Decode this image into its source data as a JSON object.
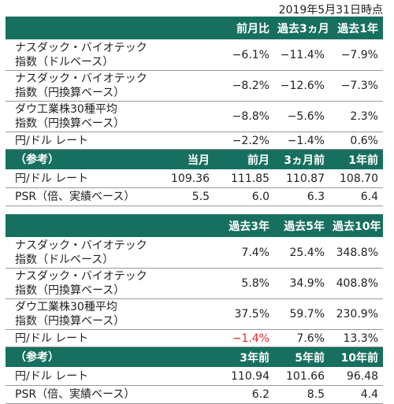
{
  "date": "2019年5月31日時点",
  "table1": {
    "headers": [
      "",
      "前月比",
      "過去3ヵ月",
      "過去1年"
    ],
    "rows": [
      {
        "label1": "ナスダック・バイオテック",
        "label2": "指数（ドルベース）",
        "values": [
          "−6.1%",
          "−11.4%",
          "−7.9%"
        ]
      },
      {
        "label1": "ナスダック・バイオテック",
        "label2": "指数（円換算ベース）",
        "values": [
          "−8.2%",
          "−12.6%",
          "−7.3%"
        ]
      },
      {
        "label1": "ダウ工業株30種平均",
        "label2": "指数（円換算ベース）",
        "values": [
          "−8.8%",
          "−5.6%",
          "2.3%"
        ]
      },
      {
        "label1": "円/ドル レート",
        "values": [
          "−2.2%",
          "−1.4%",
          "0.6%"
        ]
      }
    ],
    "ref_headers": [
      "（参考）",
      "当月",
      "前月",
      "3ヵ月前",
      "1年前"
    ],
    "ref_rows": [
      {
        "label": "円/ドル レート",
        "values": [
          "109.36",
          "111.85",
          "110.87",
          "108.70"
        ]
      },
      {
        "label": "PSR（倍、実績ベース）",
        "values": [
          "5.5",
          "6.0",
          "6.3",
          "6.4"
        ]
      }
    ]
  },
  "table2": {
    "headers": [
      "",
      "過去3年",
      "過去5年",
      "過去10年"
    ],
    "rows": [
      {
        "label1": "ナスダック・バイオテック",
        "label2": "指数（ドルベース）",
        "values": [
          "7.4%",
          "25.4%",
          "348.8%"
        ]
      },
      {
        "label1": "ナスダック・バイオテック",
        "label2": "指数（円換算ベース）",
        "values": [
          "5.8%",
          "34.9%",
          "408.8%"
        ]
      },
      {
        "label1": "ダウ工業株30種平均",
        "label2": "指数（円換算ベース）",
        "values": [
          "37.5%",
          "59.7%",
          "230.9%"
        ]
      },
      {
        "label1": "円/ドル レート",
        "values": [
          "−1.4%",
          "7.6%",
          "13.3%"
        ]
      }
    ],
    "ref_headers": [
      "（参考）",
      "3年前",
      "5年前",
      "10年前"
    ],
    "ref_rows": [
      {
        "label": "円/ドル レート",
        "values": [
          "110.94",
          "101.66",
          "96.48"
        ]
      },
      {
        "label": "PSR（倍、実績ベース）",
        "values": [
          "6.2",
          "8.5",
          "4.4"
        ]
      }
    ]
  },
  "colors": {
    "header_bg": "#17705f",
    "negative_highlight": "#e8282d"
  }
}
